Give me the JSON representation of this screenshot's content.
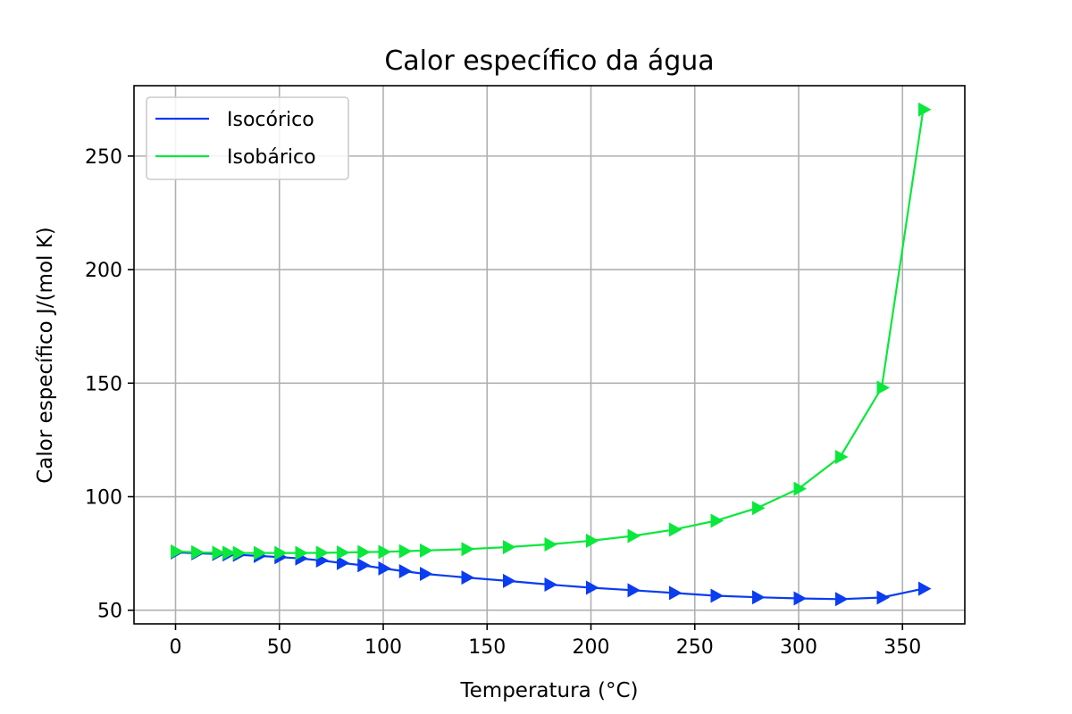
{
  "chart_data": {
    "type": "line",
    "title": "Calor específico da água",
    "xlabel": "Temperatura (°C)",
    "ylabel": "Calor específico J/(mol K)",
    "xlim": [
      -20,
      380
    ],
    "ylim": [
      44,
      281
    ],
    "xticks": [
      0,
      50,
      100,
      150,
      200,
      250,
      300,
      350
    ],
    "yticks": [
      50,
      100,
      150,
      200,
      250
    ],
    "grid": true,
    "legend_position": "top-left",
    "marker": "triangle-right",
    "series": [
      {
        "name": "Isocórico",
        "color": "#0a3cf0",
        "points": [
          [
            0,
            75.5
          ],
          [
            10,
            75.1
          ],
          [
            20,
            74.8
          ],
          [
            25,
            74.6
          ],
          [
            30,
            74.4
          ],
          [
            40,
            73.9
          ],
          [
            50,
            73.4
          ],
          [
            60,
            72.8
          ],
          [
            70,
            71.9
          ],
          [
            80,
            70.8
          ],
          [
            90,
            69.8
          ],
          [
            100,
            68.4
          ],
          [
            110,
            67.2
          ],
          [
            120,
            66.0
          ],
          [
            140,
            64.4
          ],
          [
            160,
            62.9
          ],
          [
            180,
            61.3
          ],
          [
            200,
            59.9
          ],
          [
            220,
            58.8
          ],
          [
            240,
            57.6
          ],
          [
            260,
            56.4
          ],
          [
            280,
            55.7
          ],
          [
            300,
            55.2
          ],
          [
            320,
            54.9
          ],
          [
            340,
            55.6
          ],
          [
            360,
            59.5
          ]
        ]
      },
      {
        "name": "Isobárico",
        "color": "#0ae83c",
        "points": [
          [
            0,
            75.9
          ],
          [
            10,
            75.5
          ],
          [
            20,
            75.3
          ],
          [
            25,
            75.3
          ],
          [
            30,
            75.2
          ],
          [
            40,
            75.2
          ],
          [
            50,
            75.2
          ],
          [
            60,
            75.2
          ],
          [
            70,
            75.3
          ],
          [
            80,
            75.4
          ],
          [
            90,
            75.6
          ],
          [
            100,
            75.7
          ],
          [
            110,
            76.0
          ],
          [
            120,
            76.3
          ],
          [
            140,
            76.9
          ],
          [
            160,
            77.8
          ],
          [
            180,
            79.0
          ],
          [
            200,
            80.6
          ],
          [
            220,
            82.7
          ],
          [
            240,
            85.5
          ],
          [
            260,
            89.4
          ],
          [
            280,
            95.0
          ],
          [
            300,
            103.5
          ],
          [
            320,
            117.5
          ],
          [
            340,
            148.0
          ],
          [
            360,
            270.5
          ]
        ]
      }
    ]
  }
}
